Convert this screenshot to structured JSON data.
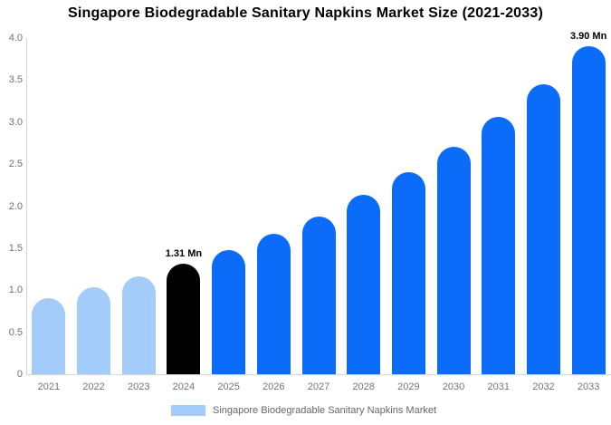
{
  "chart_data": {
    "type": "bar",
    "title": "Singapore Biodegradable Sanitary Napkins Market Size (2021-2033)",
    "unit": "Mn",
    "categories": [
      "2021",
      "2022",
      "2023",
      "2024",
      "2025",
      "2026",
      "2027",
      "2028",
      "2029",
      "2030",
      "2031",
      "2032",
      "2033"
    ],
    "values": [
      0.91,
      1.03,
      1.16,
      1.31,
      1.48,
      1.67,
      1.88,
      2.13,
      2.4,
      2.71,
      3.06,
      3.45,
      3.9
    ],
    "point_labels": [
      "",
      "",
      "",
      "1.31 Mn",
      "",
      "",
      "",
      "",
      "",
      "",
      "",
      "",
      "3.90 Mn"
    ],
    "bar_colors": [
      "#a3ccfa",
      "#a3ccfa",
      "#a3ccfa",
      "#000000",
      "#0b6cfa",
      "#0b6cfa",
      "#0b6cfa",
      "#0b6cfa",
      "#0b6cfa",
      "#0b6cfa",
      "#0b6cfa",
      "#0b6cfa",
      "#0b6cfa"
    ],
    "ylim": [
      0,
      4
    ],
    "yticks": [
      "4.0",
      "3.5",
      "3.0",
      "2.5",
      "2.0",
      "1.5",
      "1.0",
      "0.5",
      "0"
    ],
    "grid": "off",
    "legend_position": "bottom",
    "legend": "Singapore Biodegradable Sanitary Napkins Market",
    "legend_swatch_color": "#a3ccfa"
  },
  "colors": {
    "historical_bar": "#a3ccfa",
    "base_year_bar": "#000000",
    "forecast_bar": "#0b6cfa",
    "axis_line": "#d6d6d6",
    "tick_text": "#6f6f6f",
    "background": "#ffffff"
  }
}
